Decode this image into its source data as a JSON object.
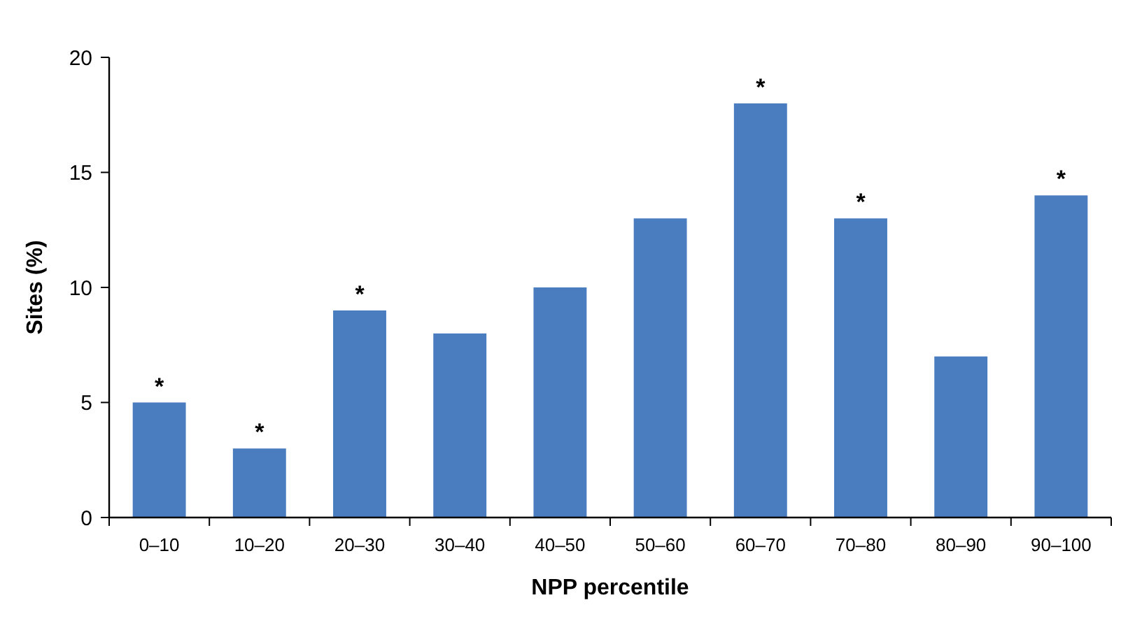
{
  "chart_data": {
    "type": "bar",
    "xlabel": "NPP percentile",
    "ylabel": "Sites (%)",
    "categories": [
      "0–10",
      "10–20",
      "20–30",
      "30–40",
      "40–50",
      "50–60",
      "60–70",
      "70–80",
      "80–90",
      "90–100"
    ],
    "values": [
      5,
      3,
      9,
      8,
      10,
      13,
      18,
      13,
      7,
      14
    ],
    "color": "#4a7dc0",
    "ylim": [
      0,
      20
    ],
    "yticks": [
      0,
      5,
      10,
      15,
      20
    ],
    "grid": false,
    "annotations": [
      {
        "text": "*",
        "x": "0–10",
        "y": 5
      },
      {
        "text": "*",
        "x": "10–20",
        "y": 3
      },
      {
        "text": "*",
        "x": "20–30",
        "y": 9
      },
      {
        "text": "*",
        "x": "60–70",
        "y": 18
      },
      {
        "text": "*",
        "x": "70–80",
        "y": 13
      },
      {
        "text": "*",
        "x": "90–100",
        "y": 14
      }
    ]
  }
}
